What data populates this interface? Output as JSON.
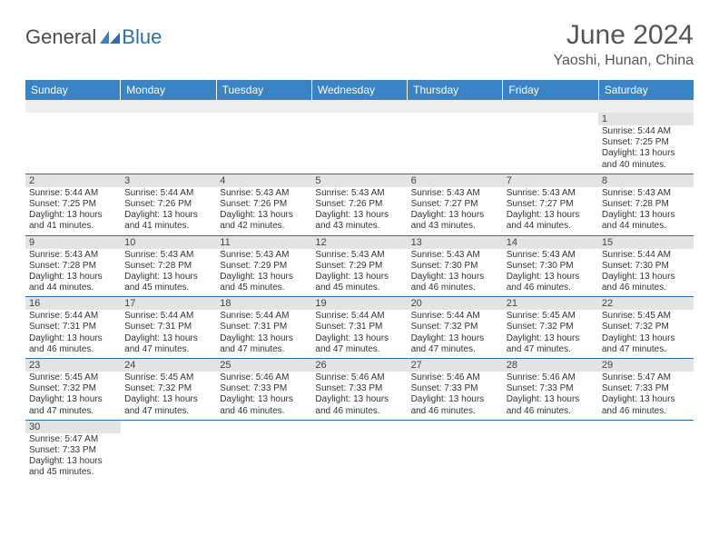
{
  "brand": {
    "part1": "General",
    "part2": "Blue"
  },
  "title": "June 2024",
  "location": "Yaoshi, Hunan, China",
  "colors": {
    "header_bg": "#3a83c5",
    "header_text": "#ffffff",
    "daynum_bg": "#e4e4e4",
    "row_border": "#2b6fb3",
    "blank_bg": "#efefef",
    "body_text": "#333333",
    "logo_blue": "#2b6fb3",
    "logo_gray": "#4a4a4a"
  },
  "day_headers": [
    "Sunday",
    "Monday",
    "Tuesday",
    "Wednesday",
    "Thursday",
    "Friday",
    "Saturday"
  ],
  "weeks": [
    [
      {
        "n": "",
        "sr": "",
        "ss": "",
        "dl": ""
      },
      {
        "n": "",
        "sr": "",
        "ss": "",
        "dl": ""
      },
      {
        "n": "",
        "sr": "",
        "ss": "",
        "dl": ""
      },
      {
        "n": "",
        "sr": "",
        "ss": "",
        "dl": ""
      },
      {
        "n": "",
        "sr": "",
        "ss": "",
        "dl": ""
      },
      {
        "n": "",
        "sr": "",
        "ss": "",
        "dl": ""
      },
      {
        "n": "1",
        "sr": "Sunrise: 5:44 AM",
        "ss": "Sunset: 7:25 PM",
        "dl": "Daylight: 13 hours and 40 minutes."
      }
    ],
    [
      {
        "n": "2",
        "sr": "Sunrise: 5:44 AM",
        "ss": "Sunset: 7:25 PM",
        "dl": "Daylight: 13 hours and 41 minutes."
      },
      {
        "n": "3",
        "sr": "Sunrise: 5:44 AM",
        "ss": "Sunset: 7:26 PM",
        "dl": "Daylight: 13 hours and 41 minutes."
      },
      {
        "n": "4",
        "sr": "Sunrise: 5:43 AM",
        "ss": "Sunset: 7:26 PM",
        "dl": "Daylight: 13 hours and 42 minutes."
      },
      {
        "n": "5",
        "sr": "Sunrise: 5:43 AM",
        "ss": "Sunset: 7:26 PM",
        "dl": "Daylight: 13 hours and 43 minutes."
      },
      {
        "n": "6",
        "sr": "Sunrise: 5:43 AM",
        "ss": "Sunset: 7:27 PM",
        "dl": "Daylight: 13 hours and 43 minutes."
      },
      {
        "n": "7",
        "sr": "Sunrise: 5:43 AM",
        "ss": "Sunset: 7:27 PM",
        "dl": "Daylight: 13 hours and 44 minutes."
      },
      {
        "n": "8",
        "sr": "Sunrise: 5:43 AM",
        "ss": "Sunset: 7:28 PM",
        "dl": "Daylight: 13 hours and 44 minutes."
      }
    ],
    [
      {
        "n": "9",
        "sr": "Sunrise: 5:43 AM",
        "ss": "Sunset: 7:28 PM",
        "dl": "Daylight: 13 hours and 44 minutes."
      },
      {
        "n": "10",
        "sr": "Sunrise: 5:43 AM",
        "ss": "Sunset: 7:28 PM",
        "dl": "Daylight: 13 hours and 45 minutes."
      },
      {
        "n": "11",
        "sr": "Sunrise: 5:43 AM",
        "ss": "Sunset: 7:29 PM",
        "dl": "Daylight: 13 hours and 45 minutes."
      },
      {
        "n": "12",
        "sr": "Sunrise: 5:43 AM",
        "ss": "Sunset: 7:29 PM",
        "dl": "Daylight: 13 hours and 45 minutes."
      },
      {
        "n": "13",
        "sr": "Sunrise: 5:43 AM",
        "ss": "Sunset: 7:30 PM",
        "dl": "Daylight: 13 hours and 46 minutes."
      },
      {
        "n": "14",
        "sr": "Sunrise: 5:43 AM",
        "ss": "Sunset: 7:30 PM",
        "dl": "Daylight: 13 hours and 46 minutes."
      },
      {
        "n": "15",
        "sr": "Sunrise: 5:44 AM",
        "ss": "Sunset: 7:30 PM",
        "dl": "Daylight: 13 hours and 46 minutes."
      }
    ],
    [
      {
        "n": "16",
        "sr": "Sunrise: 5:44 AM",
        "ss": "Sunset: 7:31 PM",
        "dl": "Daylight: 13 hours and 46 minutes."
      },
      {
        "n": "17",
        "sr": "Sunrise: 5:44 AM",
        "ss": "Sunset: 7:31 PM",
        "dl": "Daylight: 13 hours and 47 minutes."
      },
      {
        "n": "18",
        "sr": "Sunrise: 5:44 AM",
        "ss": "Sunset: 7:31 PM",
        "dl": "Daylight: 13 hours and 47 minutes."
      },
      {
        "n": "19",
        "sr": "Sunrise: 5:44 AM",
        "ss": "Sunset: 7:31 PM",
        "dl": "Daylight: 13 hours and 47 minutes."
      },
      {
        "n": "20",
        "sr": "Sunrise: 5:44 AM",
        "ss": "Sunset: 7:32 PM",
        "dl": "Daylight: 13 hours and 47 minutes."
      },
      {
        "n": "21",
        "sr": "Sunrise: 5:45 AM",
        "ss": "Sunset: 7:32 PM",
        "dl": "Daylight: 13 hours and 47 minutes."
      },
      {
        "n": "22",
        "sr": "Sunrise: 5:45 AM",
        "ss": "Sunset: 7:32 PM",
        "dl": "Daylight: 13 hours and 47 minutes."
      }
    ],
    [
      {
        "n": "23",
        "sr": "Sunrise: 5:45 AM",
        "ss": "Sunset: 7:32 PM",
        "dl": "Daylight: 13 hours and 47 minutes."
      },
      {
        "n": "24",
        "sr": "Sunrise: 5:45 AM",
        "ss": "Sunset: 7:32 PM",
        "dl": "Daylight: 13 hours and 47 minutes."
      },
      {
        "n": "25",
        "sr": "Sunrise: 5:46 AM",
        "ss": "Sunset: 7:33 PM",
        "dl": "Daylight: 13 hours and 46 minutes."
      },
      {
        "n": "26",
        "sr": "Sunrise: 5:46 AM",
        "ss": "Sunset: 7:33 PM",
        "dl": "Daylight: 13 hours and 46 minutes."
      },
      {
        "n": "27",
        "sr": "Sunrise: 5:46 AM",
        "ss": "Sunset: 7:33 PM",
        "dl": "Daylight: 13 hours and 46 minutes."
      },
      {
        "n": "28",
        "sr": "Sunrise: 5:46 AM",
        "ss": "Sunset: 7:33 PM",
        "dl": "Daylight: 13 hours and 46 minutes."
      },
      {
        "n": "29",
        "sr": "Sunrise: 5:47 AM",
        "ss": "Sunset: 7:33 PM",
        "dl": "Daylight: 13 hours and 46 minutes."
      }
    ],
    [
      {
        "n": "30",
        "sr": "Sunrise: 5:47 AM",
        "ss": "Sunset: 7:33 PM",
        "dl": "Daylight: 13 hours and 45 minutes."
      },
      {
        "n": "",
        "sr": "",
        "ss": "",
        "dl": ""
      },
      {
        "n": "",
        "sr": "",
        "ss": "",
        "dl": ""
      },
      {
        "n": "",
        "sr": "",
        "ss": "",
        "dl": ""
      },
      {
        "n": "",
        "sr": "",
        "ss": "",
        "dl": ""
      },
      {
        "n": "",
        "sr": "",
        "ss": "",
        "dl": ""
      },
      {
        "n": "",
        "sr": "",
        "ss": "",
        "dl": ""
      }
    ]
  ]
}
